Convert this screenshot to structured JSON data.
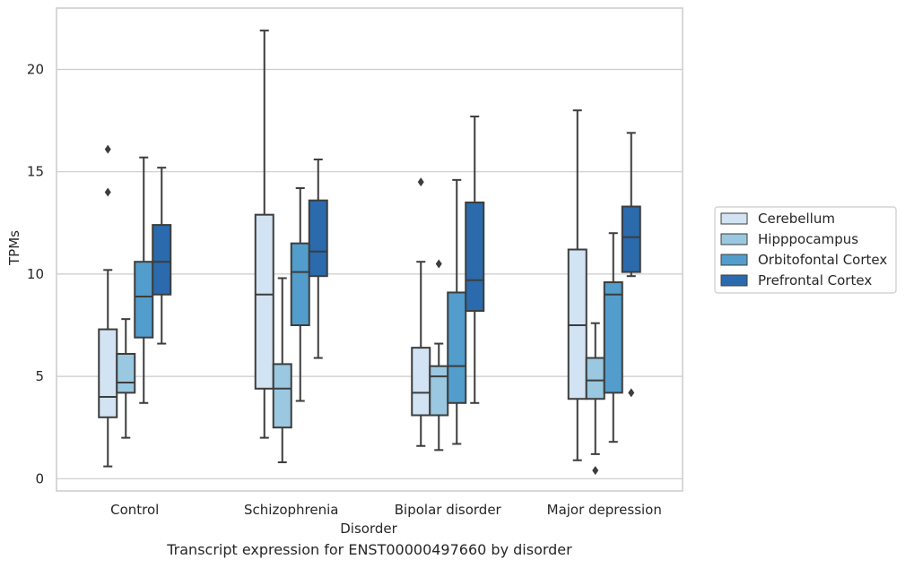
{
  "caption": "Transcript expression for ENST00000497660 by disorder",
  "chart_data": {
    "type": "box",
    "xlabel": "Disorder",
    "ylabel": "TPMs",
    "ylim": [
      -0.6,
      23.0
    ],
    "yticks": [
      0,
      5,
      10,
      15,
      20
    ],
    "grid": "horizontal",
    "legend_position": "right",
    "categories": [
      "Control",
      "Schizophrenia",
      "Bipolar disorder",
      "Major depression"
    ],
    "colors": [
      "#d2e3f3",
      "#9ac8e0",
      "#529dcc",
      "#2b6aac"
    ],
    "series": [
      {
        "name": "Cerebellum",
        "boxes": [
          {
            "whisker_low": 0.6,
            "q1": 3.0,
            "median": 4.0,
            "q3": 7.3,
            "whisker_high": 10.2,
            "outliers": [
              14.0,
              16.1
            ]
          },
          {
            "whisker_low": 2.0,
            "q1": 4.4,
            "median": 9.0,
            "q3": 12.9,
            "whisker_high": 21.9,
            "outliers": []
          },
          {
            "whisker_low": 1.6,
            "q1": 3.1,
            "median": 4.2,
            "q3": 6.4,
            "whisker_high": 10.6,
            "outliers": [
              14.5
            ]
          },
          {
            "whisker_low": 0.9,
            "q1": 3.9,
            "median": 7.5,
            "q3": 11.2,
            "whisker_high": 18.0,
            "outliers": []
          }
        ]
      },
      {
        "name": "Hipppocampus",
        "boxes": [
          {
            "whisker_low": 2.0,
            "q1": 4.2,
            "median": 4.7,
            "q3": 6.1,
            "whisker_high": 7.8,
            "outliers": []
          },
          {
            "whisker_low": 0.8,
            "q1": 2.5,
            "median": 4.4,
            "q3": 5.6,
            "whisker_high": 9.8,
            "outliers": []
          },
          {
            "whisker_low": 1.4,
            "q1": 3.1,
            "median": 5.0,
            "q3": 5.5,
            "whisker_high": 6.6,
            "outliers": [
              10.5
            ]
          },
          {
            "whisker_low": 1.2,
            "q1": 3.9,
            "median": 4.8,
            "q3": 5.9,
            "whisker_high": 7.6,
            "outliers": [
              0.4
            ]
          }
        ]
      },
      {
        "name": "Orbitofontal Cortex",
        "boxes": [
          {
            "whisker_low": 3.7,
            "q1": 6.9,
            "median": 8.9,
            "q3": 10.6,
            "whisker_high": 15.7,
            "outliers": []
          },
          {
            "whisker_low": 3.8,
            "q1": 7.5,
            "median": 10.1,
            "q3": 11.5,
            "whisker_high": 14.2,
            "outliers": []
          },
          {
            "whisker_low": 1.7,
            "q1": 3.7,
            "median": 5.5,
            "q3": 9.1,
            "whisker_high": 14.6,
            "outliers": []
          },
          {
            "whisker_low": 1.8,
            "q1": 4.2,
            "median": 9.0,
            "q3": 9.6,
            "whisker_high": 12.0,
            "outliers": []
          }
        ]
      },
      {
        "name": "Prefrontal Cortex",
        "boxes": [
          {
            "whisker_low": 6.6,
            "q1": 9.0,
            "median": 10.6,
            "q3": 12.4,
            "whisker_high": 15.2,
            "outliers": []
          },
          {
            "whisker_low": 5.9,
            "q1": 9.9,
            "median": 11.1,
            "q3": 13.6,
            "whisker_high": 15.6,
            "outliers": []
          },
          {
            "whisker_low": 3.7,
            "q1": 8.2,
            "median": 9.7,
            "q3": 13.5,
            "whisker_high": 17.7,
            "outliers": []
          },
          {
            "whisker_low": 9.9,
            "q1": 10.1,
            "median": 11.8,
            "q3": 13.3,
            "whisker_high": 16.9,
            "outliers": [
              4.2
            ]
          }
        ]
      }
    ]
  }
}
